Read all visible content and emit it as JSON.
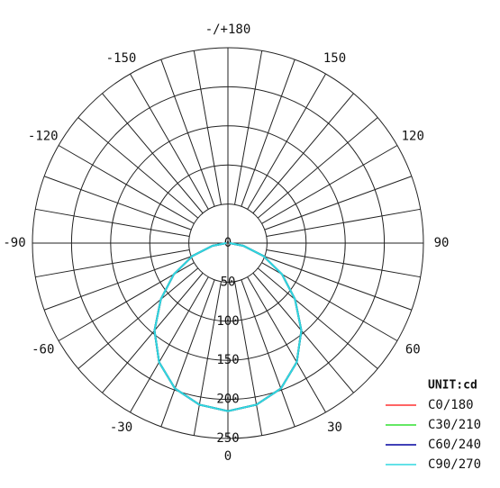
{
  "chart_data": {
    "type": "polar",
    "angles": [
      -90,
      -80,
      -70,
      -60,
      -50,
      -40,
      -30,
      -20,
      -10,
      0,
      10,
      20,
      30,
      40,
      50,
      60,
      70,
      80,
      90
    ],
    "series": [
      {
        "name": "C0/180",
        "color": "#ff3030",
        "values": [
          2,
          20,
          48,
          80,
          112,
          146,
          176,
          198,
          210,
          215,
          210,
          198,
          176,
          146,
          112,
          80,
          48,
          20,
          2
        ]
      },
      {
        "name": "C30/210",
        "color": "#30e030",
        "values": [
          2,
          20,
          48,
          80,
          112,
          146,
          176,
          198,
          210,
          215,
          210,
          198,
          176,
          146,
          112,
          80,
          48,
          20,
          2
        ]
      },
      {
        "name": "C60/240",
        "color": "#0000a0",
        "values": [
          2,
          20,
          48,
          80,
          112,
          146,
          176,
          198,
          210,
          215,
          210,
          198,
          176,
          146,
          112,
          80,
          48,
          20,
          2
        ]
      },
      {
        "name": "C90/270",
        "color": "#30d8e0",
        "values": [
          2,
          20,
          48,
          80,
          112,
          146,
          176,
          198,
          210,
          215,
          210,
          198,
          176,
          146,
          112,
          80,
          48,
          20,
          2
        ]
      }
    ],
    "rlim": [
      0,
      250
    ],
    "rticks": [
      0,
      50,
      100,
      150,
      200,
      250
    ],
    "angle_ticks": [
      {
        "value": 180,
        "label": "-/+180"
      },
      -150,
      150,
      -120,
      120,
      -90,
      90,
      -60,
      60,
      -30,
      30,
      0
    ],
    "legend_title": "UNIT:cd",
    "legend": "lower right"
  }
}
